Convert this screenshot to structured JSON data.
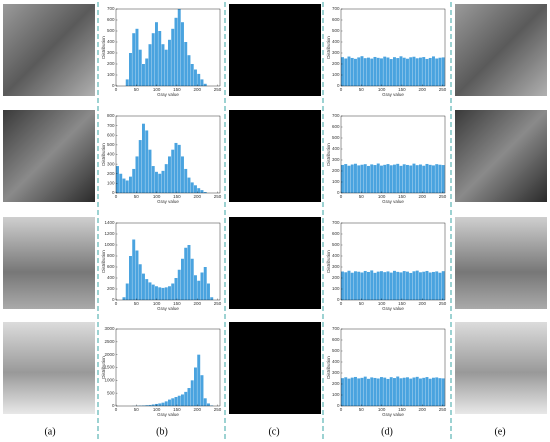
{
  "panel_labels": [
    "(a)",
    "(b)",
    "(c)",
    "(d)",
    "(e)"
  ],
  "chart_data": [
    {
      "type": "histogram",
      "xlabel": "Gray value",
      "ylabel": "Distribution",
      "color": "#4aa3df",
      "bins": [
        0,
        8,
        16,
        24,
        32,
        40,
        48,
        56,
        64,
        72,
        80,
        88,
        96,
        104,
        112,
        120,
        128,
        136,
        144,
        152,
        160,
        168,
        176,
        184,
        192,
        200,
        208,
        216,
        224,
        232,
        240,
        248,
        256
      ],
      "values": [
        0,
        0,
        0,
        60,
        300,
        480,
        520,
        330,
        200,
        250,
        380,
        480,
        580,
        500,
        380,
        330,
        420,
        520,
        620,
        700,
        580,
        400,
        280,
        200,
        150,
        110,
        60,
        20,
        0,
        0,
        0,
        0
      ],
      "xlim": [
        0,
        256
      ],
      "xticks": [
        0,
        50,
        100,
        150,
        200,
        250
      ],
      "ylim": [
        0,
        700
      ],
      "yticks": [
        0,
        100,
        200,
        300,
        400,
        500,
        600,
        700
      ]
    },
    {
      "type": "histogram",
      "xlabel": "Gray value",
      "ylabel": "Distribution",
      "color": "#4aa3df",
      "bins": [
        0,
        8,
        16,
        24,
        32,
        40,
        48,
        56,
        64,
        72,
        80,
        88,
        96,
        104,
        112,
        120,
        128,
        136,
        144,
        152,
        160,
        168,
        176,
        184,
        192,
        200,
        208,
        216,
        224,
        232,
        240,
        248,
        256
      ],
      "values": [
        280,
        200,
        150,
        130,
        170,
        250,
        380,
        550,
        720,
        650,
        450,
        280,
        220,
        200,
        230,
        300,
        380,
        450,
        520,
        500,
        380,
        250,
        160,
        110,
        80,
        50,
        30,
        10,
        0,
        0,
        0,
        0
      ],
      "xlim": [
        0,
        256
      ],
      "xticks": [
        0,
        50,
        100,
        150,
        200,
        250
      ],
      "ylim": [
        0,
        800
      ],
      "yticks": [
        0,
        100,
        200,
        300,
        400,
        500,
        600,
        700,
        800
      ]
    },
    {
      "type": "histogram",
      "xlabel": "Gray value",
      "ylabel": "Distribution",
      "color": "#4aa3df",
      "bins": [
        0,
        8,
        16,
        24,
        32,
        40,
        48,
        56,
        64,
        72,
        80,
        88,
        96,
        104,
        112,
        120,
        128,
        136,
        144,
        152,
        160,
        168,
        176,
        184,
        192,
        200,
        208,
        216,
        224,
        232,
        240,
        248,
        256
      ],
      "values": [
        0,
        0,
        50,
        300,
        800,
        1100,
        900,
        650,
        480,
        380,
        320,
        280,
        250,
        230,
        220,
        230,
        250,
        300,
        400,
        550,
        750,
        950,
        1000,
        750,
        450,
        350,
        500,
        600,
        300,
        50,
        0,
        0
      ],
      "xlim": [
        0,
        256
      ],
      "xticks": [
        0,
        50,
        100,
        150,
        200,
        250
      ],
      "ylim": [
        0,
        1400
      ],
      "yticks": [
        0,
        200,
        400,
        600,
        800,
        1000,
        1200,
        1400
      ]
    },
    {
      "type": "histogram",
      "xlabel": "Gray value",
      "ylabel": "Distribution",
      "color": "#4aa3df",
      "bins": [
        0,
        8,
        16,
        24,
        32,
        40,
        48,
        56,
        64,
        72,
        80,
        88,
        96,
        104,
        112,
        120,
        128,
        136,
        144,
        152,
        160,
        168,
        176,
        184,
        192,
        200,
        208,
        216,
        224,
        232,
        240,
        248,
        256
      ],
      "values": [
        0,
        0,
        0,
        0,
        0,
        5,
        10,
        15,
        20,
        30,
        40,
        60,
        80,
        100,
        130,
        180,
        250,
        300,
        350,
        400,
        450,
        550,
        700,
        1000,
        1500,
        2000,
        1200,
        300,
        100,
        20,
        0,
        0
      ],
      "xlim": [
        0,
        256
      ],
      "xticks": [
        0,
        50,
        100,
        150,
        200,
        250
      ],
      "ylim": [
        0,
        3000
      ],
      "yticks": [
        0,
        500,
        1000,
        1500,
        2000,
        2500,
        3000
      ]
    },
    {
      "type": "histogram",
      "xlabel": "Gray value",
      "ylabel": "Distribution",
      "color": "#4aa3df",
      "bins": [
        0,
        8,
        16,
        24,
        32,
        40,
        48,
        56,
        64,
        72,
        80,
        88,
        96,
        104,
        112,
        120,
        128,
        136,
        144,
        152,
        160,
        168,
        176,
        184,
        192,
        200,
        208,
        216,
        224,
        232,
        240,
        248,
        256
      ],
      "values": [
        262,
        250,
        268,
        255,
        247,
        260,
        271,
        253,
        258,
        249,
        264,
        256,
        251,
        267,
        259,
        245,
        262,
        254,
        270,
        257,
        248,
        261,
        266,
        252,
        258,
        263,
        246,
        255,
        269,
        250,
        257,
        260
      ],
      "xlim": [
        0,
        256
      ],
      "xticks": [
        0,
        50,
        100,
        150,
        200,
        250
      ],
      "ylim": [
        0,
        700
      ],
      "yticks": [
        0,
        100,
        200,
        300,
        400,
        500,
        600,
        700
      ]
    },
    {
      "type": "histogram",
      "xlabel": "Gray value",
      "ylabel": "Distribution",
      "color": "#4aa3df",
      "bins": [
        0,
        8,
        16,
        24,
        32,
        40,
        48,
        56,
        64,
        72,
        80,
        88,
        96,
        104,
        112,
        120,
        128,
        136,
        144,
        152,
        160,
        168,
        176,
        184,
        192,
        200,
        208,
        216,
        224,
        232,
        240,
        248,
        256
      ],
      "values": [
        255,
        263,
        248,
        259,
        266,
        251,
        257,
        262,
        246,
        260,
        254,
        268,
        249,
        256,
        263,
        252,
        258,
        265,
        247,
        261,
        255,
        250,
        267,
        253,
        259,
        248,
        264,
        256,
        251,
        262,
        257,
        254
      ],
      "xlim": [
        0,
        256
      ],
      "xticks": [
        0,
        50,
        100,
        150,
        200,
        250
      ],
      "ylim": [
        0,
        700
      ],
      "yticks": [
        0,
        100,
        200,
        300,
        400,
        500,
        600,
        700
      ]
    },
    {
      "type": "histogram",
      "xlabel": "Gray value",
      "ylabel": "Distribution",
      "color": "#4aa3df",
      "bins": [
        0,
        8,
        16,
        24,
        32,
        40,
        48,
        56,
        64,
        72,
        80,
        88,
        96,
        104,
        112,
        120,
        128,
        136,
        144,
        152,
        160,
        168,
        176,
        184,
        192,
        200,
        208,
        216,
        224,
        232,
        240,
        248,
        256
      ],
      "values": [
        259,
        252,
        266,
        248,
        261,
        257,
        250,
        264,
        255,
        269,
        247,
        258,
        262,
        253,
        260,
        249,
        265,
        256,
        251,
        263,
        258,
        246,
        261,
        267,
        252,
        257,
        264,
        250,
        255,
        260,
        248,
        262
      ],
      "xlim": [
        0,
        256
      ],
      "xticks": [
        0,
        50,
        100,
        150,
        200,
        250
      ],
      "ylim": [
        0,
        700
      ],
      "yticks": [
        0,
        100,
        200,
        300,
        400,
        500,
        600,
        700
      ]
    },
    {
      "type": "histogram",
      "xlabel": "Gray value",
      "ylabel": "Distribution",
      "color": "#4aa3df",
      "bins": [
        0,
        8,
        16,
        24,
        32,
        40,
        48,
        56,
        64,
        72,
        80,
        88,
        96,
        104,
        112,
        120,
        128,
        136,
        144,
        152,
        160,
        168,
        176,
        184,
        192,
        200,
        208,
        216,
        224,
        232,
        240,
        248,
        256
      ],
      "values": [
        253,
        261,
        249,
        258,
        264,
        251,
        256,
        267,
        247,
        260,
        255,
        250,
        263,
        258,
        246,
        262,
        254,
        268,
        252,
        257,
        261,
        249,
        259,
        265,
        250,
        256,
        263,
        248,
        257,
        260,
        253,
        251
      ],
      "xlim": [
        0,
        256
      ],
      "xticks": [
        0,
        50,
        100,
        150,
        200,
        250
      ],
      "ylim": [
        0,
        700
      ],
      "yticks": [
        0,
        100,
        200,
        300,
        400,
        500,
        600,
        700
      ]
    }
  ]
}
